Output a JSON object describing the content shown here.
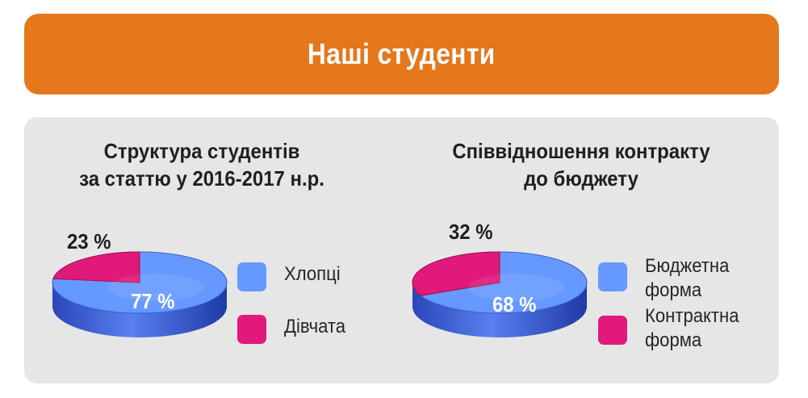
{
  "header": {
    "title": "Наші студенти"
  },
  "colors": {
    "header_bg": "#e5771c",
    "panel_bg": "#e6e6e6",
    "blue": "#6699ff",
    "blue_dark": "#2c4fc7",
    "magenta": "#e0197a"
  },
  "chart_data": [
    {
      "type": "pie",
      "title_lines": [
        "Структура студентів",
        "за статтю у 2016-2017 н.р."
      ],
      "categories": [
        "Хлопці",
        "Дівчата"
      ],
      "values": [
        77,
        23
      ],
      "labels": [
        "77 %",
        "23 %"
      ],
      "colors": [
        "#6699ff",
        "#e0197a"
      ],
      "legend_position": "right"
    },
    {
      "type": "pie",
      "title_lines": [
        "Співвідношення контракту",
        "до бюджету"
      ],
      "categories": [
        "Бюджетна форма",
        "Контрактна форма"
      ],
      "values": [
        68,
        32
      ],
      "labels": [
        "68 %",
        "32 %"
      ],
      "colors": [
        "#6699ff",
        "#e0197a"
      ],
      "legend_position": "right"
    }
  ],
  "legend1": {
    "items": [
      {
        "label": "Хлопці"
      },
      {
        "label": "Дівчата"
      }
    ]
  },
  "legend2": {
    "items": [
      {
        "label": "Бюджетна\nформа"
      },
      {
        "label": "Контрактна\nформа"
      }
    ]
  }
}
